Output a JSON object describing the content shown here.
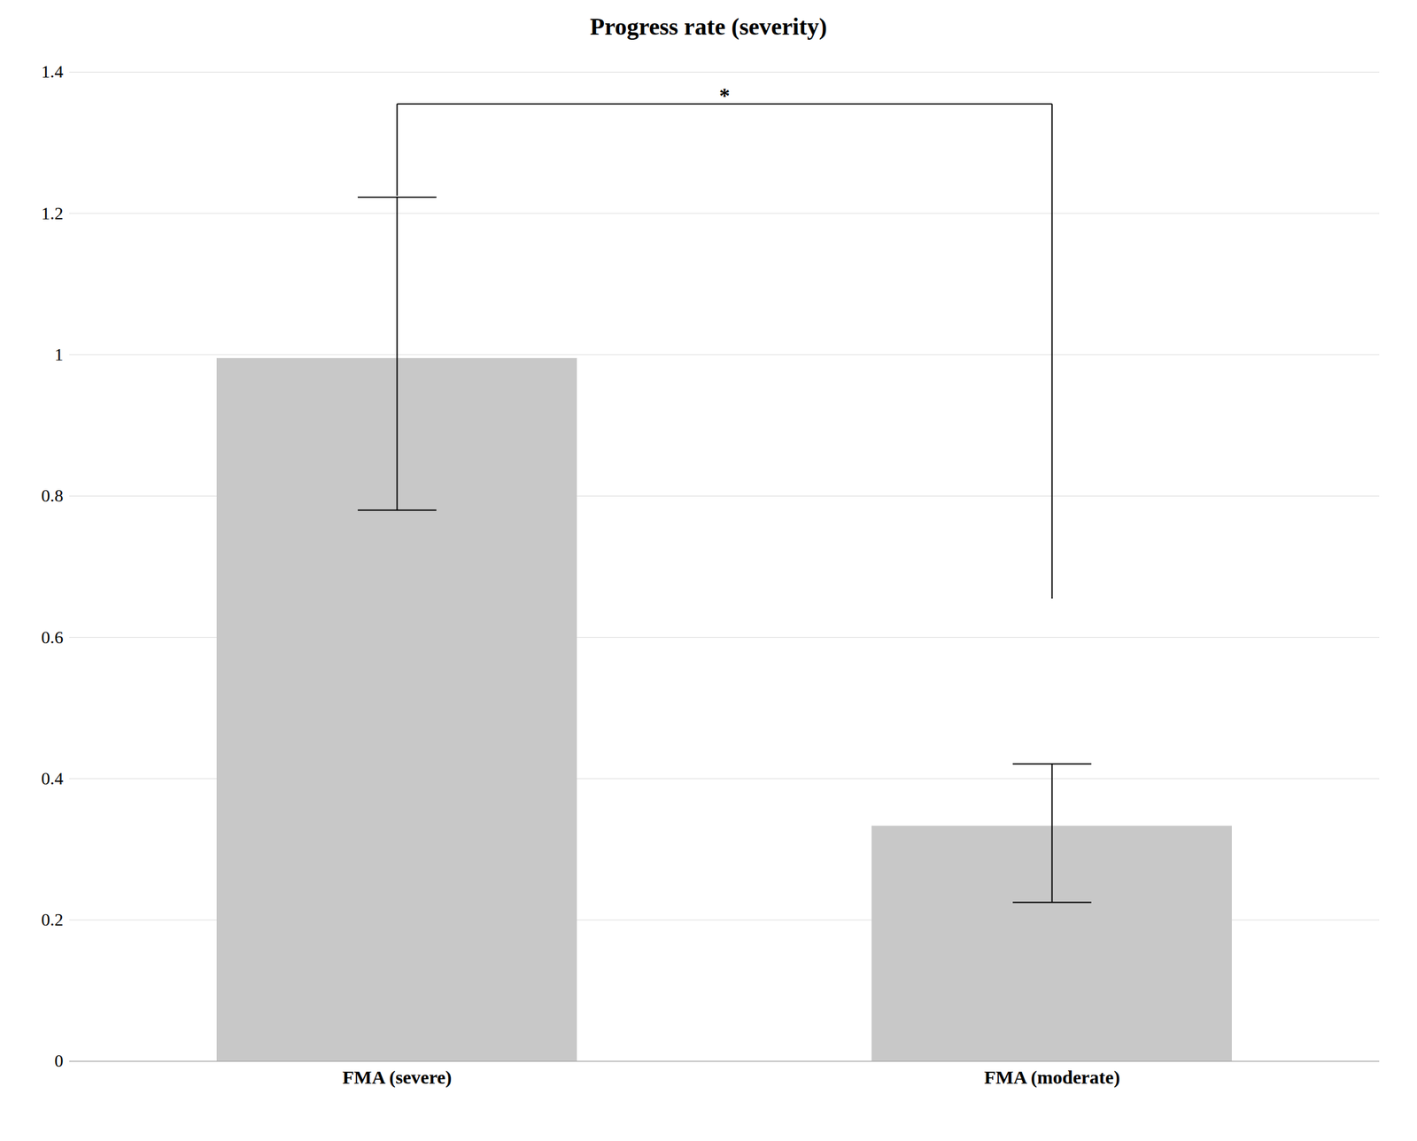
{
  "chart_data": {
    "type": "bar",
    "title": "Progress rate (severity)",
    "categories": [
      "FMA (severe)",
      "FMA (moderate)"
    ],
    "values": [
      0.995,
      0.333
    ],
    "error_upper": [
      0.228,
      0.088
    ],
    "error_lower": [
      0.215,
      0.108
    ],
    "color": "#c8c8c8",
    "ylim": [
      0,
      1.4
    ],
    "yticks": [
      0,
      0.2,
      0.4,
      0.6,
      0.8,
      1,
      1.2,
      1.4
    ],
    "grid": true,
    "annotations": [
      {
        "text": "*",
        "type": "bracket",
        "from": "FMA (severe)",
        "to": "FMA (moderate)",
        "y": 1.355,
        "drop_left": 1.225,
        "drop_right": 0.655
      }
    ]
  }
}
